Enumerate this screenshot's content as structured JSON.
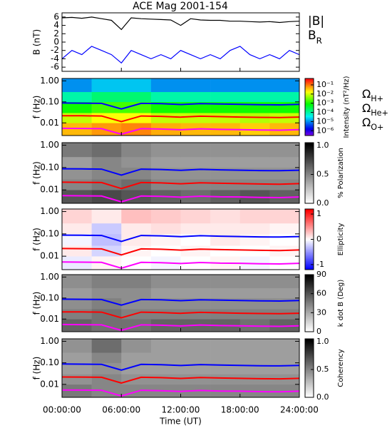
{
  "chart_data": {
    "title": "ACE Mag 2001-154",
    "time_axis": {
      "xlabel": "Time (UT)",
      "xlim": [
        0,
        24
      ],
      "xticks": [
        {
          "value": 0,
          "label": "00:00:00"
        },
        {
          "value": 6,
          "label": "06:00:00"
        },
        {
          "value": 12,
          "label": "12:00:00"
        },
        {
          "value": 18,
          "label": "18:00:00"
        },
        {
          "value": 24,
          "label": "24:00:00"
        }
      ],
      "xbins": [
        0,
        3,
        6,
        9,
        12,
        15,
        18,
        21,
        24
      ]
    },
    "freq_axis": {
      "ylabel": "f (Hz)",
      "log": true,
      "ylim": [
        0.0025,
        1.3
      ],
      "yticks": [
        {
          "value": 1,
          "label": "1.00"
        },
        {
          "value": 0.1,
          "label": "0.10"
        },
        {
          "value": 0.01,
          "label": "0.01"
        }
      ],
      "ybins": [
        0.0025,
        0.01,
        0.03,
        0.1,
        0.3,
        1.3
      ]
    },
    "gyro": {
      "x": [
        0,
        2,
        4,
        6,
        8,
        10,
        12,
        14,
        16,
        18,
        20,
        22,
        24
      ],
      "series": [
        {
          "name": "ΩH+",
          "color": "#0000ff",
          "values": [
            0.088,
            0.087,
            0.085,
            0.046,
            0.085,
            0.082,
            0.075,
            0.083,
            0.079,
            0.076,
            0.073,
            0.072,
            0.076
          ]
        },
        {
          "name": "ΩHe+",
          "color": "#ff0000",
          "values": [
            0.022,
            0.0218,
            0.0213,
            0.0115,
            0.0213,
            0.0205,
            0.0188,
            0.0208,
            0.0198,
            0.019,
            0.0183,
            0.018,
            0.019
          ]
        },
        {
          "name": "ΩO+",
          "color": "#ff00ff",
          "values": [
            0.0055,
            0.0054,
            0.0053,
            0.0029,
            0.0053,
            0.0051,
            0.0047,
            0.0052,
            0.0049,
            0.0048,
            0.0046,
            0.0045,
            0.0048
          ]
        }
      ]
    },
    "panels": [
      {
        "type": "line",
        "ylabel": "B (nT)",
        "ylim": [
          -7,
          7
        ],
        "yticks": [
          6,
          4,
          2,
          0,
          -2,
          -4,
          -6
        ],
        "x": [
          0,
          1,
          2,
          3,
          4,
          5,
          6,
          7,
          8,
          9,
          10,
          11,
          12,
          13,
          14,
          15,
          16,
          17,
          18,
          19,
          20,
          21,
          22,
          23,
          24
        ],
        "series": [
          {
            "name": "|B|",
            "color": "#000000",
            "values": [
              5.8,
              5.9,
              5.7,
              6.0,
              5.6,
              5.2,
              3.0,
              5.8,
              5.6,
              5.5,
              5.4,
              5.3,
              4.0,
              5.6,
              5.3,
              5.2,
              5.2,
              5.0,
              5.0,
              4.9,
              4.8,
              4.9,
              4.7,
              4.9,
              5.0
            ]
          },
          {
            "name": "BR",
            "color": "#0000ff",
            "values": [
              -4,
              -2,
              -3,
              -1,
              -2,
              -3,
              -5,
              -2,
              -3,
              -4,
              -3,
              -4,
              -2,
              -3,
              -4,
              -3,
              -4,
              -2,
              -1,
              -3,
              -4,
              -3,
              -4,
              -2,
              -3
            ]
          }
        ]
      },
      {
        "type": "heatmap",
        "gyro_legend": true,
        "colormap": "rainbow",
        "colorbar": {
          "label": "Intensity (nT²/Hz)",
          "log": true,
          "lim": [
            3e-07,
            0.5
          ],
          "ticks": [
            {
              "value": 0.1,
              "label": "10⁻¹"
            },
            {
              "value": 0.01,
              "label": "10⁻²"
            },
            {
              "value": 0.001,
              "label": "10⁻³"
            },
            {
              "value": 0.0001,
              "label": "10⁻⁴"
            },
            {
              "value": 1e-05,
              "label": "10⁻⁵"
            },
            {
              "value": 1e-06,
              "label": "10⁻⁶"
            }
          ]
        },
        "z": [
          [
            0.05,
            0.08,
            0.1,
            0.06,
            0.05,
            0.05,
            0.04,
            0.05
          ],
          [
            0.01,
            0.02,
            0.02,
            0.01,
            0.01,
            0.01,
            0.008,
            0.01
          ],
          [
            0.001,
            0.002,
            0.002,
            0.001,
            0.001,
            0.001,
            0.001,
            0.001
          ],
          [
            0.0001,
            0.0002,
            0.0002,
            0.0001,
            0.0001,
            0.0001,
            0.0001,
            0.0001
          ],
          [
            1e-05,
            2e-05,
            2e-05,
            1e-05,
            1e-05,
            1e-05,
            1e-05,
            1e-05
          ]
        ]
      },
      {
        "type": "heatmap",
        "colormap": "gray",
        "colorbar": {
          "label": "% Polarization",
          "lim": [
            0,
            1.05
          ],
          "ticks": [
            {
              "value": 0,
              "label": "0.0"
            },
            0.5,
            {
              "value": 1,
              "label": "1.0"
            }
          ]
        },
        "z": [
          [
            0.7,
            0.75,
            0.7,
            0.65,
            0.6,
            0.65,
            0.7,
            0.65
          ],
          [
            0.5,
            0.55,
            0.6,
            0.5,
            0.5,
            0.5,
            0.5,
            0.5
          ],
          [
            0.45,
            0.5,
            0.5,
            0.45,
            0.45,
            0.45,
            0.45,
            0.45
          ],
          [
            0.4,
            0.5,
            0.45,
            0.4,
            0.4,
            0.4,
            0.4,
            0.4
          ],
          [
            0.55,
            0.6,
            0.5,
            0.45,
            0.45,
            0.45,
            0.45,
            0.45
          ]
        ]
      },
      {
        "type": "heatmap",
        "colormap": "bwr",
        "colorbar": {
          "label": "Ellipticity",
          "lim": [
            -1.2,
            1.2
          ],
          "ticks": [
            -1,
            0,
            1
          ]
        },
        "z": [
          [
            -0.1,
            0.05,
            0,
            -0.05,
            0,
            0.05,
            -0.05,
            0
          ],
          [
            0.1,
            -0.2,
            0.05,
            0,
            0.05,
            0,
            0,
            0.05
          ],
          [
            -0.05,
            -0.3,
            0.1,
            0.05,
            0,
            0.1,
            0.05,
            0
          ],
          [
            0.1,
            -0.25,
            0.1,
            0.15,
            0.1,
            0.1,
            0.1,
            0.05
          ],
          [
            0.2,
            0.1,
            0.3,
            0.25,
            0.2,
            0.15,
            0.2,
            0.2
          ]
        ]
      },
      {
        "type": "heatmap",
        "colormap": "gray",
        "colorbar": {
          "label": "k dot B (Deg)",
          "lim": [
            0,
            90
          ],
          "ticks": [
            0,
            30,
            60,
            90
          ]
        },
        "z": [
          [
            55,
            50,
            50,
            55,
            55,
            55,
            50,
            55
          ],
          [
            45,
            50,
            45,
            45,
            45,
            45,
            45,
            45
          ],
          [
            40,
            45,
            40,
            40,
            40,
            40,
            40,
            40
          ],
          [
            35,
            40,
            40,
            35,
            35,
            35,
            35,
            35
          ],
          [
            40,
            45,
            45,
            40,
            40,
            40,
            40,
            40
          ]
        ]
      },
      {
        "type": "heatmap",
        "colormap": "gray",
        "colorbar": {
          "label": "Coherency",
          "lim": [
            0,
            1.05
          ],
          "ticks": [
            {
              "value": 0,
              "label": "0.0"
            },
            0.5,
            {
              "value": 1,
              "label": "1.0"
            }
          ]
        },
        "z": [
          [
            0.55,
            0.5,
            0.5,
            0.5,
            0.5,
            0.5,
            0.5,
            0.5
          ],
          [
            0.45,
            0.5,
            0.45,
            0.45,
            0.45,
            0.45,
            0.45,
            0.45
          ],
          [
            0.4,
            0.45,
            0.4,
            0.4,
            0.4,
            0.4,
            0.4,
            0.4
          ],
          [
            0.4,
            0.5,
            0.4,
            0.4,
            0.4,
            0.4,
            0.4,
            0.4
          ],
          [
            0.45,
            0.6,
            0.45,
            0.4,
            0.4,
            0.4,
            0.4,
            0.4
          ]
        ]
      }
    ]
  }
}
